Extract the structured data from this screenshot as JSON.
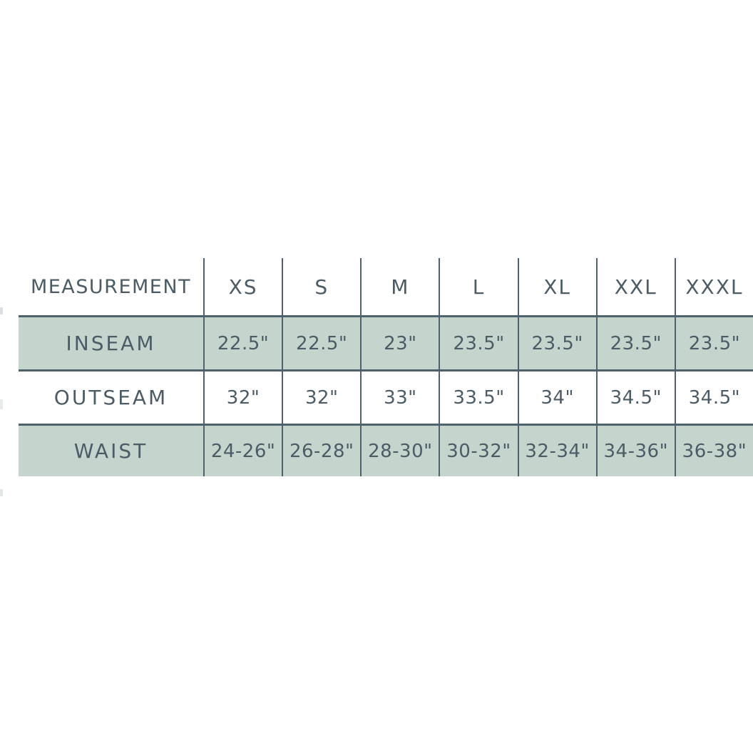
{
  "chart_data": {
    "type": "table",
    "title": "",
    "columns": [
      "MEASUREMENT",
      "XS",
      "S",
      "M",
      "L",
      "XL",
      "XXL",
      "XXXL"
    ],
    "rows": [
      [
        "INSEAM",
        "22.5\"",
        "22.5\"",
        "23\"",
        "23.5\"",
        "23.5\"",
        "23.5\"",
        "23.5\""
      ],
      [
        "OUTSEAM",
        "32\"",
        "32\"",
        "33\"",
        "33.5\"",
        "34\"",
        "34.5\"",
        "34.5\""
      ],
      [
        "WAIST",
        "24-26\"",
        "26-28\"",
        "28-30\"",
        "30-32\"",
        "32-34\"",
        "34-36\"",
        "36-38\""
      ]
    ],
    "layout_hints": {
      "striped_rows": [
        1,
        3
      ],
      "header_background": "#ffffff",
      "stripe_color": "#c6d4ce",
      "border_color": "#4f616b",
      "text_color": "#4c5c66",
      "outer_left_border": false,
      "outer_bottom_border": false,
      "table_clipped_right_edge": true
    }
  }
}
